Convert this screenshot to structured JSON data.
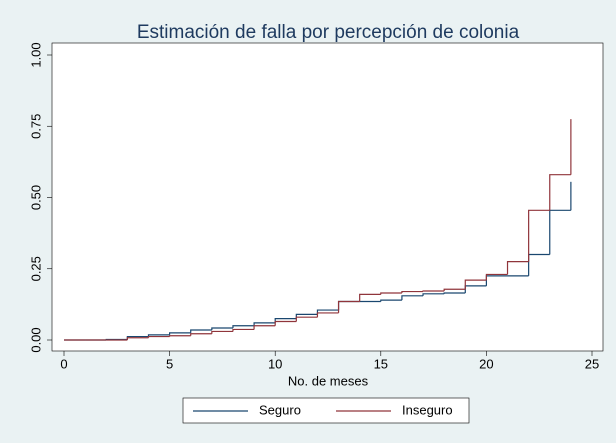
{
  "chart_data": {
    "type": "step",
    "title": "Estimación de falla por percepción de colonia",
    "x_label": "No. de meses",
    "x": [
      0,
      1,
      2,
      3,
      4,
      5,
      6,
      7,
      8,
      9,
      10,
      11,
      12,
      13,
      14,
      15,
      16,
      17,
      18,
      19,
      20,
      21,
      22,
      23,
      24
    ],
    "series": [
      {
        "name": "Seguro",
        "color": "#1a476f",
        "values": [
          0,
          0,
          0.002,
          0.012,
          0.018,
          0.025,
          0.035,
          0.042,
          0.05,
          0.06,
          0.075,
          0.09,
          0.105,
          0.135,
          0.135,
          0.14,
          0.155,
          0.162,
          0.165,
          0.19,
          0.225,
          0.225,
          0.3,
          0.455,
          0.555
        ]
      },
      {
        "name": "Inseguro",
        "color": "#90353b",
        "values": [
          0,
          0,
          0,
          0.008,
          0.012,
          0.015,
          0.022,
          0.03,
          0.037,
          0.05,
          0.065,
          0.08,
          0.095,
          0.135,
          0.16,
          0.165,
          0.17,
          0.172,
          0.178,
          0.21,
          0.23,
          0.275,
          0.455,
          0.58,
          0.775
        ]
      }
    ],
    "xlim": [
      0,
      25
    ],
    "xticks": [
      0,
      5,
      10,
      15,
      20,
      25
    ],
    "ylim": [
      0,
      1
    ],
    "yticks": [
      {
        "value": 0,
        "label": "0.00"
      },
      {
        "value": 0.25,
        "label": "0.25"
      },
      {
        "value": 0.5,
        "label": "0.50"
      },
      {
        "value": 0.75,
        "label": "0.75"
      },
      {
        "value": 1,
        "label": "1.00"
      }
    ],
    "legend": "bottom"
  }
}
